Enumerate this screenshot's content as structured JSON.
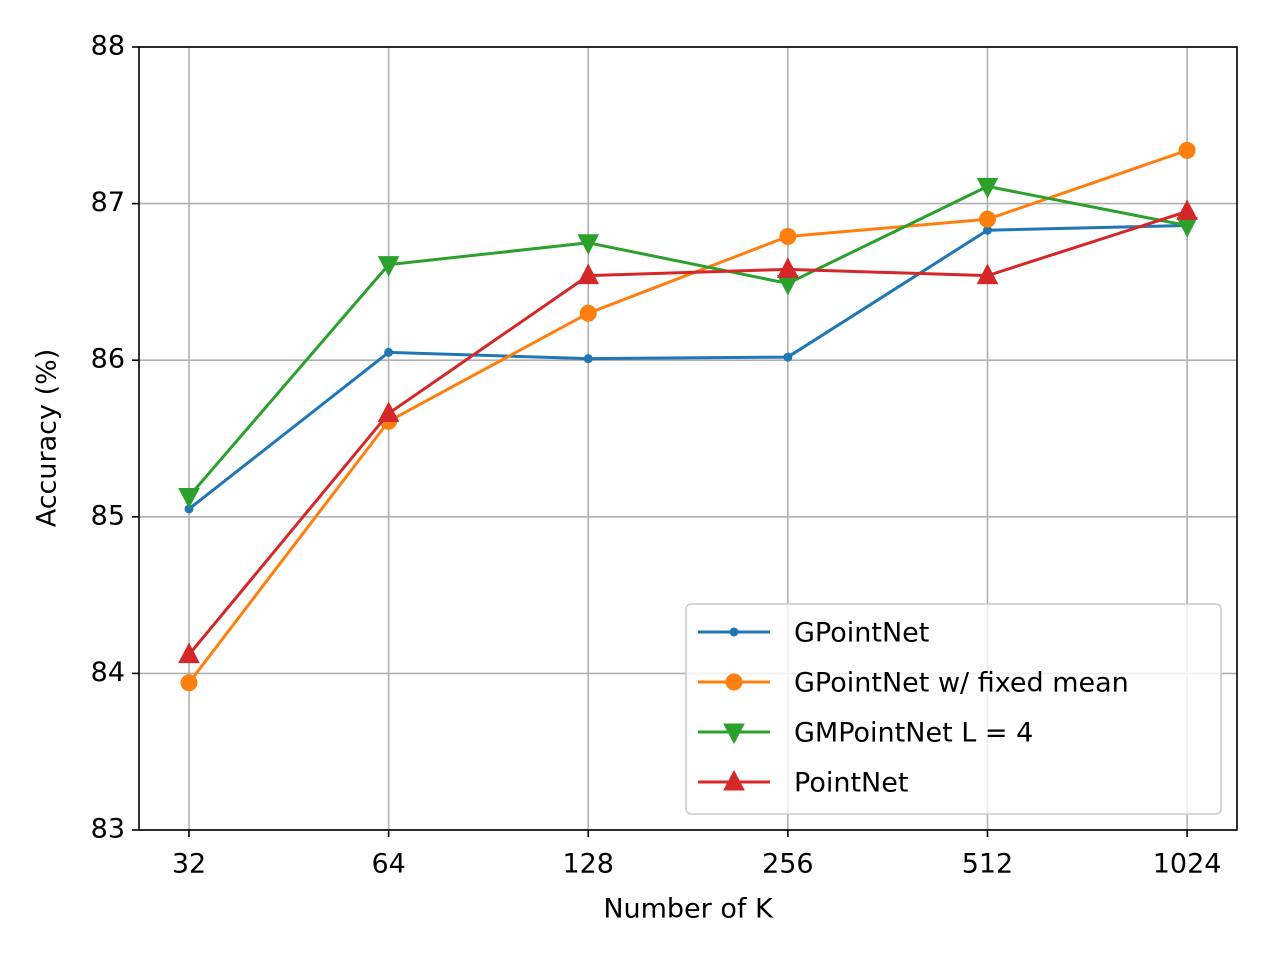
{
  "chart_data": {
    "type": "line",
    "xlabel": "Number of K",
    "ylabel": "Accuracy (%)",
    "x": [
      32,
      64,
      128,
      256,
      512,
      1024
    ],
    "xscale": "log2",
    "xlim": [
      26.9,
      1217.7
    ],
    "xticks": [
      32,
      64,
      128,
      256,
      512,
      1024
    ],
    "ylim": [
      83,
      88
    ],
    "yticks": [
      83,
      84,
      85,
      86,
      87,
      88
    ],
    "grid": true,
    "legend": "lower right",
    "series": [
      {
        "name": "GPointNet",
        "color": "#1f77b4",
        "marker": "point",
        "values": [
          85.05,
          86.05,
          86.01,
          86.02,
          86.83,
          86.86
        ]
      },
      {
        "name": "GPointNet w/ fixed mean",
        "color": "#ff7f0e",
        "marker": "circle",
        "values": [
          83.94,
          85.61,
          86.3,
          86.79,
          86.9,
          87.34
        ]
      },
      {
        "name": "GMPointNet L = 4",
        "color": "#2ca02c",
        "marker": "triangle-down",
        "values": [
          85.13,
          86.61,
          86.75,
          86.49,
          87.11,
          86.86
        ]
      },
      {
        "name": "PointNet",
        "color": "#d62728",
        "marker": "triangle-up",
        "values": [
          84.12,
          85.66,
          86.54,
          86.58,
          86.54,
          86.95
        ]
      }
    ]
  }
}
